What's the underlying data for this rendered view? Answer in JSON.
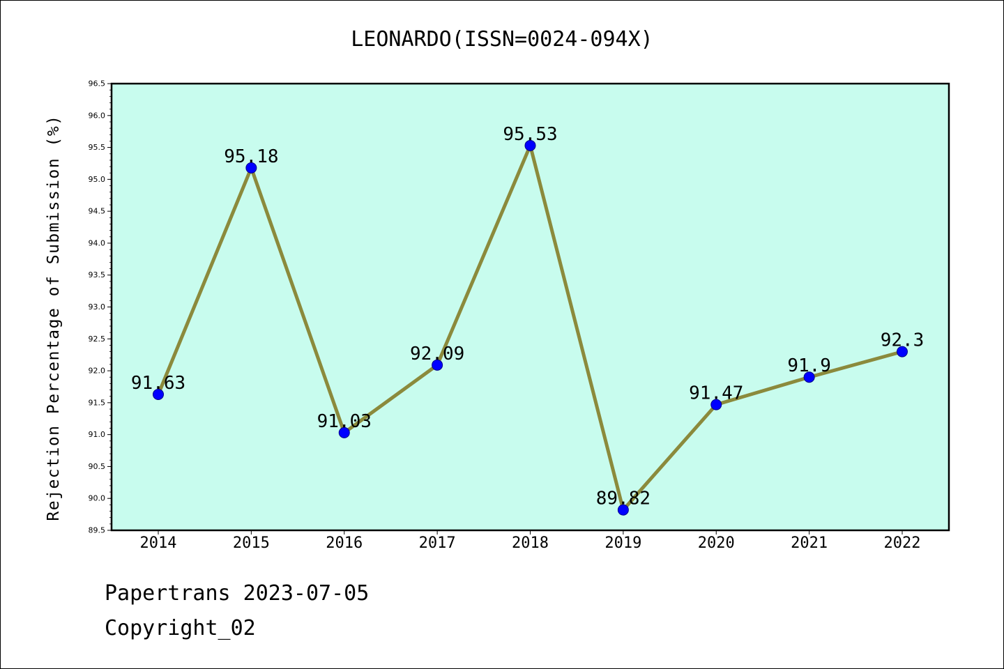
{
  "chart_data": {
    "type": "line",
    "title": "LEONARDO(ISSN=0024-094X)",
    "xlabel": "",
    "ylabel": "Rejection Percentage of Submission (%)",
    "categories": [
      "2014",
      "2015",
      "2016",
      "2017",
      "2018",
      "2019",
      "2020",
      "2021",
      "2022"
    ],
    "series": [
      {
        "values": [
          91.63,
          95.18,
          91.03,
          92.09,
          95.53,
          89.82,
          91.47,
          91.9,
          92.3
        ],
        "data_labels": [
          "91.63",
          "95.18",
          "91.03",
          "92.09",
          "95.53",
          "89.82",
          "91.47",
          "91.9",
          "92.3"
        ]
      }
    ],
    "ylim": [
      89.5,
      96.5
    ],
    "yticks": [
      "89.5",
      "90.0",
      "90.5",
      "91.0",
      "91.5",
      "92.0",
      "92.5",
      "93.0",
      "93.5",
      "94.0",
      "94.5",
      "95.0",
      "95.5",
      "96.0",
      "96.5"
    ],
    "grid": false,
    "legend": "none",
    "colors": {
      "plot_background": "#c8fcee",
      "line": "#8b8a3c",
      "marker": "#0000ff",
      "marker_edge": "#00008b",
      "axis": "#000000"
    }
  },
  "footer": {
    "line1": "Papertrans 2023-07-05",
    "line2": "Copyright_02"
  }
}
